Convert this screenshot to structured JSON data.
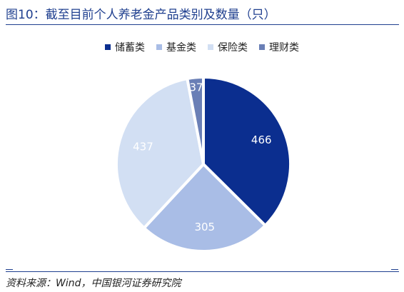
{
  "title": "图10：截至目前个人养老金产品类别及数量（只）",
  "source": "资料来源：Wind，中国银河证券研究院",
  "chart_data": {
    "type": "pie",
    "title": "图10：截至目前个人养老金产品类别及数量（只）",
    "legend_position": "top",
    "series": [
      {
        "name": "储蓄类",
        "value": 466,
        "color": "#0b2e8f"
      },
      {
        "name": "基金类",
        "value": 305,
        "color": "#a9bde6"
      },
      {
        "name": "保险类",
        "value": 437,
        "color": "#d2dff3"
      },
      {
        "name": "理财类",
        "value": 37,
        "color": "#6a7fb6"
      }
    ]
  }
}
